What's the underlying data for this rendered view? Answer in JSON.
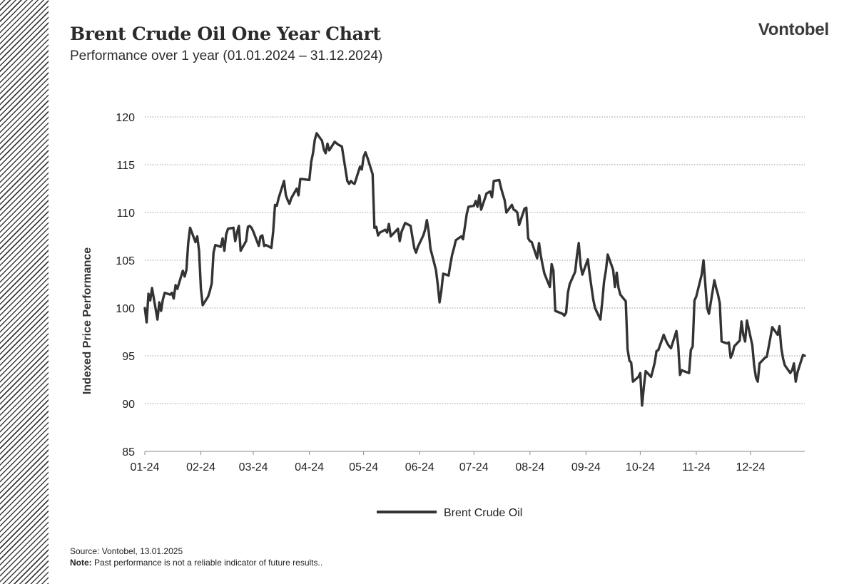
{
  "header": {
    "title": "Brent Crude Oil One Year Chart",
    "subtitle": "Performance over 1 year (01.01.2024  – 31.12.2024)",
    "brand": "Vontobel"
  },
  "footer": {
    "source": "Source: Vontobel,  13.01.2025",
    "note_label": "Note:",
    "note_text": " Past performance  is not a reliable indicator of future results.."
  },
  "colors": {
    "line": "#333333",
    "grid": "#9a9a9a",
    "axis": "#8a8a8a"
  },
  "chart_data": {
    "type": "line",
    "title": "",
    "xlabel": "",
    "ylabel": "Indexed Price Performance",
    "ylim": [
      85,
      120
    ],
    "yticks": [
      85,
      90,
      95,
      100,
      105,
      110,
      115,
      120
    ],
    "xlim": [
      "2024-01-01",
      "2024-12-31"
    ],
    "x_tick_labels": [
      "01-24",
      "02-24",
      "03-24",
      "04-24",
      "05-24",
      "06-24",
      "07-24",
      "08-24",
      "09-24",
      "10-24",
      "11-24",
      "12-24"
    ],
    "x_tick_dates": [
      "2024-01-01",
      "2024-02-01",
      "2024-03-01",
      "2024-04-01",
      "2024-05-01",
      "2024-06-01",
      "2024-07-01",
      "2024-08-01",
      "2024-09-01",
      "2024-10-01",
      "2024-11-01",
      "2024-12-01"
    ],
    "grid": "horizontal dotted",
    "legend_position": "bottom-center",
    "series": [
      {
        "name": "Brent Crude Oil",
        "points": [
          [
            "2024-01-01",
            100.0
          ],
          [
            "2024-01-02",
            98.5
          ],
          [
            "2024-01-03",
            101.5
          ],
          [
            "2024-01-04",
            100.8
          ],
          [
            "2024-01-05",
            102.1
          ],
          [
            "2024-01-08",
            98.8
          ],
          [
            "2024-01-09",
            100.6
          ],
          [
            "2024-01-10",
            99.7
          ],
          [
            "2024-01-11",
            100.9
          ],
          [
            "2024-01-12",
            101.6
          ],
          [
            "2024-01-15",
            101.4
          ],
          [
            "2024-01-16",
            101.6
          ],
          [
            "2024-01-17",
            101.0
          ],
          [
            "2024-01-18",
            102.4
          ],
          [
            "2024-01-19",
            102.0
          ],
          [
            "2024-01-22",
            103.9
          ],
          [
            "2024-01-23",
            103.3
          ],
          [
            "2024-01-24",
            104.0
          ],
          [
            "2024-01-25",
            106.8
          ],
          [
            "2024-01-26",
            108.4
          ],
          [
            "2024-01-29",
            106.9
          ],
          [
            "2024-01-30",
            107.5
          ],
          [
            "2024-01-31",
            106.0
          ],
          [
            "2024-02-01",
            102.0
          ],
          [
            "2024-02-02",
            100.3
          ],
          [
            "2024-02-05",
            101.2
          ],
          [
            "2024-02-06",
            101.8
          ],
          [
            "2024-02-07",
            102.6
          ],
          [
            "2024-02-08",
            105.8
          ],
          [
            "2024-02-09",
            106.6
          ],
          [
            "2024-02-12",
            106.4
          ],
          [
            "2024-02-13",
            107.3
          ],
          [
            "2024-02-14",
            106.0
          ],
          [
            "2024-02-15",
            107.7
          ],
          [
            "2024-02-16",
            108.3
          ],
          [
            "2024-02-19",
            108.4
          ],
          [
            "2024-02-20",
            107.0
          ],
          [
            "2024-02-21",
            107.9
          ],
          [
            "2024-02-22",
            108.6
          ],
          [
            "2024-02-23",
            106.0
          ],
          [
            "2024-02-26",
            107.0
          ],
          [
            "2024-02-27",
            108.5
          ],
          [
            "2024-02-28",
            108.6
          ],
          [
            "2024-02-29",
            108.4
          ],
          [
            "2024-03-01",
            108.0
          ],
          [
            "2024-03-04",
            106.5
          ],
          [
            "2024-03-05",
            107.5
          ],
          [
            "2024-03-06",
            107.6
          ],
          [
            "2024-03-07",
            106.5
          ],
          [
            "2024-03-08",
            106.6
          ],
          [
            "2024-03-11",
            106.3
          ],
          [
            "2024-03-12",
            108.0
          ],
          [
            "2024-03-13",
            110.8
          ],
          [
            "2024-03-14",
            110.7
          ],
          [
            "2024-03-15",
            111.5
          ],
          [
            "2024-03-18",
            113.3
          ],
          [
            "2024-03-19",
            111.8
          ],
          [
            "2024-03-20",
            111.3
          ],
          [
            "2024-03-21",
            110.9
          ],
          [
            "2024-03-22",
            111.5
          ],
          [
            "2024-03-25",
            112.5
          ],
          [
            "2024-03-26",
            111.8
          ],
          [
            "2024-03-27",
            113.5
          ],
          [
            "2024-03-28",
            113.5
          ],
          [
            "2024-04-01",
            113.4
          ],
          [
            "2024-04-02",
            115.3
          ],
          [
            "2024-04-03",
            116.2
          ],
          [
            "2024-04-04",
            117.6
          ],
          [
            "2024-04-05",
            118.3
          ],
          [
            "2024-04-08",
            117.5
          ],
          [
            "2024-04-09",
            116.6
          ],
          [
            "2024-04-10",
            116.2
          ],
          [
            "2024-04-11",
            117.2
          ],
          [
            "2024-04-12",
            116.5
          ],
          [
            "2024-04-15",
            117.4
          ],
          [
            "2024-04-17",
            117.1
          ],
          [
            "2024-04-19",
            116.9
          ],
          [
            "2024-04-22",
            113.3
          ],
          [
            "2024-04-23",
            113.0
          ],
          [
            "2024-04-24",
            113.3
          ],
          [
            "2024-04-25",
            113.1
          ],
          [
            "2024-04-26",
            113.0
          ],
          [
            "2024-04-29",
            114.8
          ],
          [
            "2024-04-30",
            114.5
          ],
          [
            "2024-05-01",
            115.8
          ],
          [
            "2024-05-02",
            116.3
          ],
          [
            "2024-05-03",
            115.8
          ],
          [
            "2024-05-06",
            114.0
          ],
          [
            "2024-05-07",
            108.4
          ],
          [
            "2024-05-08",
            108.5
          ],
          [
            "2024-05-09",
            107.6
          ],
          [
            "2024-05-10",
            107.9
          ],
          [
            "2024-05-13",
            108.2
          ],
          [
            "2024-05-14",
            107.9
          ],
          [
            "2024-05-15",
            108.8
          ],
          [
            "2024-05-16",
            107.5
          ],
          [
            "2024-05-17",
            107.7
          ],
          [
            "2024-05-20",
            108.3
          ],
          [
            "2024-05-21",
            107.0
          ],
          [
            "2024-05-22",
            108.0
          ],
          [
            "2024-05-24",
            108.9
          ],
          [
            "2024-05-27",
            108.6
          ],
          [
            "2024-05-28",
            107.4
          ],
          [
            "2024-05-29",
            106.3
          ],
          [
            "2024-05-30",
            105.8
          ],
          [
            "2024-05-31",
            106.4
          ],
          [
            "2024-06-03",
            107.6
          ],
          [
            "2024-06-04",
            108.2
          ],
          [
            "2024-06-05",
            109.2
          ],
          [
            "2024-06-06",
            108.0
          ],
          [
            "2024-06-07",
            106.2
          ],
          [
            "2024-06-10",
            104.0
          ],
          [
            "2024-06-11",
            102.5
          ],
          [
            "2024-06-12",
            100.6
          ],
          [
            "2024-06-13",
            101.8
          ],
          [
            "2024-06-14",
            103.6
          ],
          [
            "2024-06-17",
            103.4
          ],
          [
            "2024-06-18",
            104.6
          ],
          [
            "2024-06-19",
            105.6
          ],
          [
            "2024-06-20",
            106.3
          ],
          [
            "2024-06-21",
            107.1
          ],
          [
            "2024-06-24",
            107.5
          ],
          [
            "2024-06-25",
            107.2
          ],
          [
            "2024-06-26",
            108.5
          ],
          [
            "2024-06-27",
            109.8
          ],
          [
            "2024-06-28",
            110.6
          ],
          [
            "2024-07-01",
            110.7
          ],
          [
            "2024-07-02",
            111.2
          ],
          [
            "2024-07-03",
            110.6
          ],
          [
            "2024-07-04",
            111.8
          ],
          [
            "2024-07-05",
            110.3
          ],
          [
            "2024-07-08",
            112.0
          ],
          [
            "2024-07-09",
            112.1
          ],
          [
            "2024-07-10",
            112.2
          ],
          [
            "2024-07-11",
            111.6
          ],
          [
            "2024-07-12",
            113.3
          ],
          [
            "2024-07-15",
            113.4
          ],
          [
            "2024-07-16",
            112.6
          ],
          [
            "2024-07-17",
            111.9
          ],
          [
            "2024-07-18",
            111.3
          ],
          [
            "2024-07-19",
            110.0
          ],
          [
            "2024-07-22",
            110.8
          ],
          [
            "2024-07-23",
            110.3
          ],
          [
            "2024-07-24",
            110.2
          ],
          [
            "2024-07-25",
            110.0
          ],
          [
            "2024-07-26",
            108.7
          ],
          [
            "2024-07-29",
            110.4
          ],
          [
            "2024-07-30",
            110.5
          ],
          [
            "2024-07-31",
            107.3
          ],
          [
            "2024-08-01",
            107.0
          ],
          [
            "2024-08-02",
            106.9
          ],
          [
            "2024-08-05",
            105.2
          ],
          [
            "2024-08-06",
            106.8
          ],
          [
            "2024-08-07",
            105.5
          ],
          [
            "2024-08-08",
            104.5
          ],
          [
            "2024-08-09",
            103.6
          ],
          [
            "2024-08-12",
            102.2
          ],
          [
            "2024-08-13",
            104.6
          ],
          [
            "2024-08-14",
            103.9
          ],
          [
            "2024-08-15",
            99.7
          ],
          [
            "2024-08-19",
            99.4
          ],
          [
            "2024-08-20",
            99.2
          ],
          [
            "2024-08-21",
            99.5
          ],
          [
            "2024-08-22",
            101.6
          ],
          [
            "2024-08-23",
            102.5
          ],
          [
            "2024-08-26",
            103.8
          ],
          [
            "2024-08-27",
            105.5
          ],
          [
            "2024-08-28",
            106.8
          ],
          [
            "2024-08-29",
            104.5
          ],
          [
            "2024-08-30",
            103.5
          ],
          [
            "2024-09-02",
            105.1
          ],
          [
            "2024-09-03",
            103.6
          ],
          [
            "2024-09-04",
            102.2
          ],
          [
            "2024-09-05",
            100.9
          ],
          [
            "2024-09-06",
            100.0
          ],
          [
            "2024-09-09",
            98.8
          ],
          [
            "2024-09-10",
            100.7
          ],
          [
            "2024-09-11",
            102.8
          ],
          [
            "2024-09-12",
            103.9
          ],
          [
            "2024-09-13",
            105.6
          ],
          [
            "2024-09-16",
            104.0
          ],
          [
            "2024-09-17",
            102.2
          ],
          [
            "2024-09-18",
            103.7
          ],
          [
            "2024-09-19",
            102.1
          ],
          [
            "2024-09-20",
            101.4
          ],
          [
            "2024-09-23",
            100.7
          ],
          [
            "2024-09-24",
            95.7
          ],
          [
            "2024-09-25",
            94.5
          ],
          [
            "2024-09-26",
            94.3
          ],
          [
            "2024-09-27",
            92.3
          ],
          [
            "2024-09-30",
            92.8
          ],
          [
            "2024-10-01",
            93.2
          ],
          [
            "2024-10-02",
            89.8
          ],
          [
            "2024-10-03",
            91.8
          ],
          [
            "2024-10-04",
            93.4
          ],
          [
            "2024-10-07",
            92.8
          ],
          [
            "2024-10-08",
            93.5
          ],
          [
            "2024-10-09",
            94.3
          ],
          [
            "2024-10-10",
            95.5
          ],
          [
            "2024-10-11",
            95.6
          ],
          [
            "2024-10-14",
            97.2
          ],
          [
            "2024-10-15",
            96.7
          ],
          [
            "2024-10-16",
            96.3
          ],
          [
            "2024-10-17",
            96.0
          ],
          [
            "2024-10-18",
            95.8
          ],
          [
            "2024-10-21",
            97.6
          ],
          [
            "2024-10-22",
            96.1
          ],
          [
            "2024-10-23",
            93.0
          ],
          [
            "2024-10-24",
            93.5
          ],
          [
            "2024-10-25",
            93.4
          ],
          [
            "2024-10-28",
            93.2
          ],
          [
            "2024-10-29",
            95.6
          ],
          [
            "2024-10-30",
            96.0
          ],
          [
            "2024-10-31",
            100.8
          ],
          [
            "2024-11-01",
            101.2
          ],
          [
            "2024-11-04",
            103.5
          ],
          [
            "2024-11-05",
            105.0
          ],
          [
            "2024-11-06",
            102.5
          ],
          [
            "2024-11-07",
            100.0
          ],
          [
            "2024-11-08",
            99.4
          ],
          [
            "2024-11-11",
            102.9
          ],
          [
            "2024-11-12",
            102.1
          ],
          [
            "2024-11-13",
            101.4
          ],
          [
            "2024-11-14",
            100.5
          ],
          [
            "2024-11-15",
            96.5
          ],
          [
            "2024-11-18",
            96.3
          ],
          [
            "2024-11-19",
            96.4
          ],
          [
            "2024-11-20",
            94.8
          ],
          [
            "2024-11-21",
            95.2
          ],
          [
            "2024-11-22",
            96.0
          ],
          [
            "2024-11-25",
            96.6
          ],
          [
            "2024-11-26",
            98.6
          ],
          [
            "2024-11-27",
            97.2
          ],
          [
            "2024-11-28",
            96.5
          ],
          [
            "2024-11-29",
            98.7
          ],
          [
            "2024-12-02",
            96.1
          ],
          [
            "2024-12-03",
            94.0
          ],
          [
            "2024-12-04",
            92.7
          ],
          [
            "2024-12-05",
            92.3
          ],
          [
            "2024-12-06",
            94.2
          ],
          [
            "2024-12-09",
            94.8
          ],
          [
            "2024-12-10",
            94.9
          ],
          [
            "2024-12-11",
            95.9
          ],
          [
            "2024-12-12",
            96.9
          ],
          [
            "2024-12-13",
            98.0
          ],
          [
            "2024-12-16",
            97.2
          ],
          [
            "2024-12-17",
            98.1
          ],
          [
            "2024-12-18",
            95.8
          ],
          [
            "2024-12-19",
            94.7
          ],
          [
            "2024-12-20",
            94.0
          ],
          [
            "2024-12-23",
            93.2
          ],
          [
            "2024-12-24",
            93.5
          ],
          [
            "2024-12-25",
            94.2
          ],
          [
            "2024-12-26",
            92.3
          ],
          [
            "2024-12-27",
            93.3
          ],
          [
            "2024-12-30",
            95.1
          ],
          [
            "2024-12-31",
            95.0
          ]
        ]
      }
    ]
  }
}
